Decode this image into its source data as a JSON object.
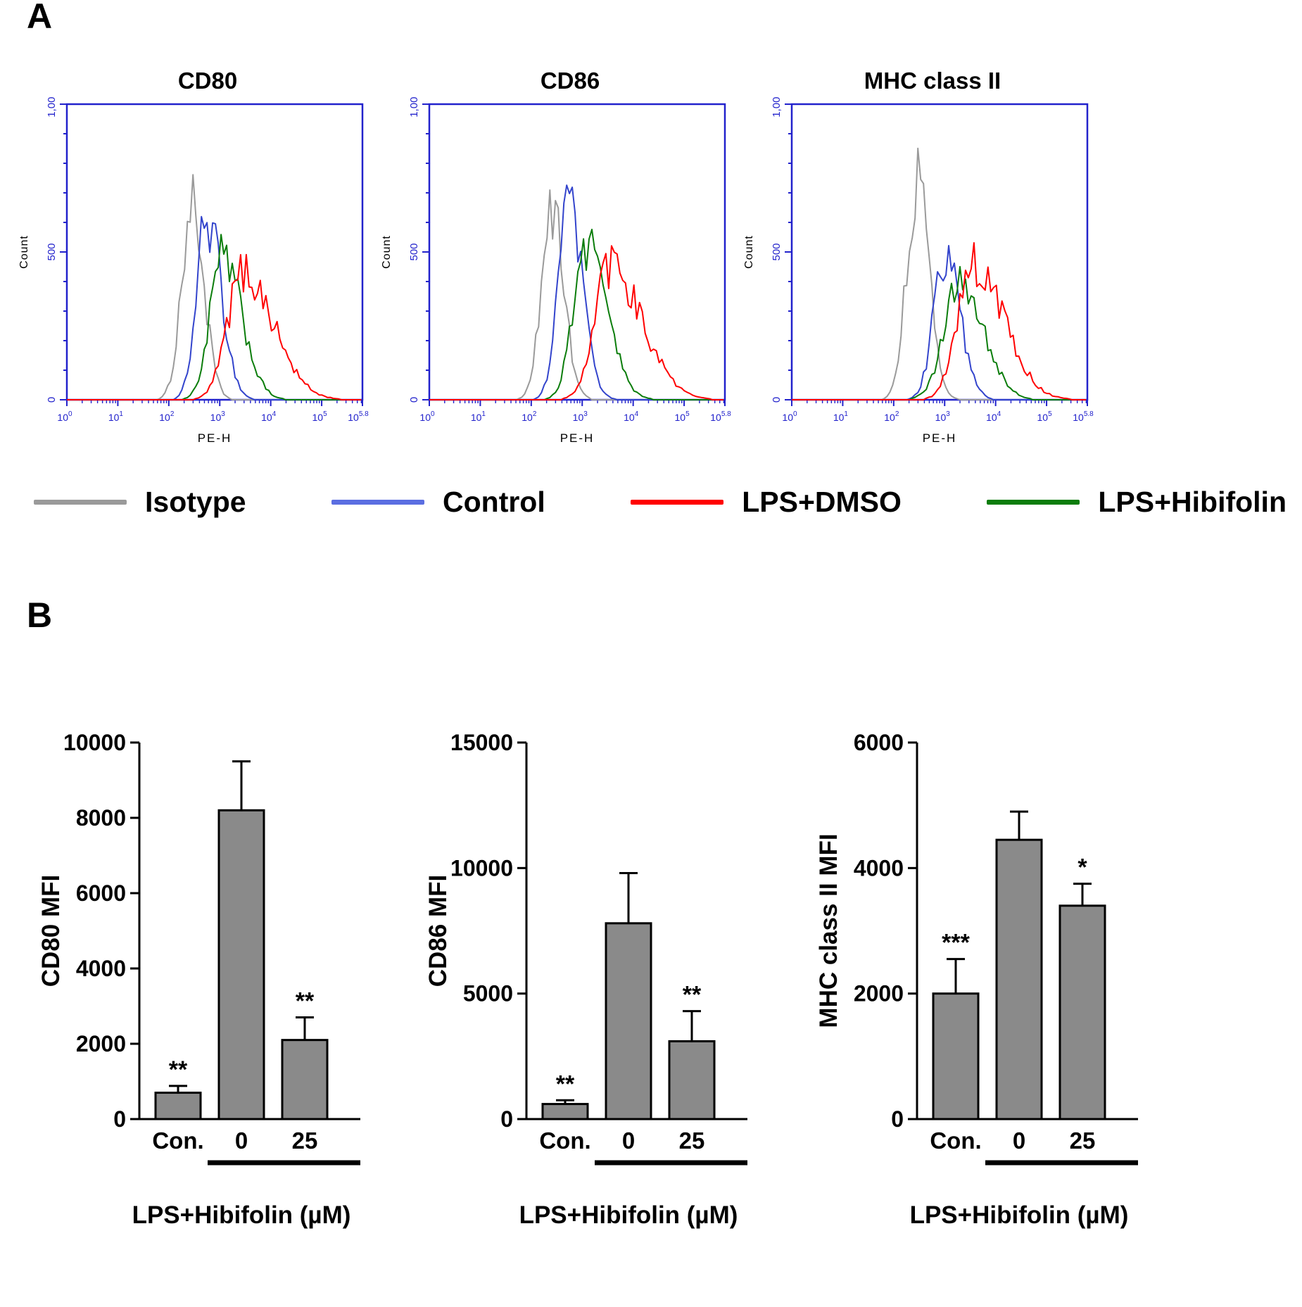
{
  "panel_a": {
    "label": "A",
    "titles": [
      "CD80",
      "CD86",
      "MHC class II"
    ],
    "legend": [
      {
        "label": "Isotype",
        "color": "#9a9a9a"
      },
      {
        "label": "Control",
        "color": "#5b6ee1"
      },
      {
        "label": "LPS+DMSO",
        "color": "#ff0000"
      },
      {
        "label": "LPS+Hibifolin",
        "color": "#0b7d0b"
      }
    ],
    "axis_color": "#2222cc"
  },
  "panel_b": {
    "label": "B"
  },
  "chart_data": [
    {
      "type": "histogram",
      "title": "CD80",
      "xlabel": "PE-H",
      "ylabel": "Count",
      "x_scale": "log10",
      "xlim": [
        0,
        5.8
      ],
      "x_decades": [
        0,
        1,
        2,
        3,
        4,
        5
      ],
      "x_end_exponent": "5.8",
      "ylim": [
        0,
        1000
      ],
      "yticks": [
        0,
        500,
        1000
      ],
      "ytick_labels": {
        "0": "0",
        "500": "500",
        "1000": "1,000"
      },
      "series": [
        {
          "name": "Isotype",
          "color": "#9a9a9a",
          "peak_log": 2.45,
          "peak_count": 650,
          "sigma_l": 0.2,
          "sigma_r": 0.24
        },
        {
          "name": "Control",
          "color": "#3344cc",
          "peak_log": 2.75,
          "peak_count": 615,
          "sigma_l": 0.2,
          "sigma_r": 0.28
        },
        {
          "name": "LPS+Hibifolin",
          "color": "#0b7d0b",
          "peak_log": 3.05,
          "peak_count": 480,
          "sigma_l": 0.24,
          "sigma_r": 0.38
        },
        {
          "name": "LPS+DMSO",
          "color": "#ff0000",
          "peak_log": 3.45,
          "peak_count": 430,
          "sigma_l": 0.3,
          "sigma_r": 0.6
        }
      ]
    },
    {
      "type": "histogram",
      "title": "CD86",
      "xlabel": "PE-H",
      "ylabel": "Count",
      "x_scale": "log10",
      "xlim": [
        0,
        5.8
      ],
      "x_decades": [
        0,
        1,
        2,
        3,
        4,
        5
      ],
      "x_end_exponent": "5.8",
      "ylim": [
        0,
        1000
      ],
      "yticks": [
        0,
        500,
        1000
      ],
      "ytick_labels": {
        "0": "0",
        "500": "500",
        "1000": "1,000"
      },
      "series": [
        {
          "name": "Isotype",
          "color": "#9a9a9a",
          "peak_log": 2.4,
          "peak_count": 640,
          "sigma_l": 0.2,
          "sigma_r": 0.24
        },
        {
          "name": "Control",
          "color": "#3344cc",
          "peak_log": 2.72,
          "peak_count": 645,
          "sigma_l": 0.2,
          "sigma_r": 0.28
        },
        {
          "name": "LPS+Hibifolin",
          "color": "#0b7d0b",
          "peak_log": 3.08,
          "peak_count": 530,
          "sigma_l": 0.25,
          "sigma_r": 0.4
        },
        {
          "name": "LPS+DMSO",
          "color": "#ff0000",
          "peak_log": 3.55,
          "peak_count": 450,
          "sigma_l": 0.3,
          "sigma_r": 0.62
        }
      ]
    },
    {
      "type": "histogram",
      "title": "MHC class II",
      "xlabel": "PE-H",
      "ylabel": "Count",
      "x_scale": "log10",
      "xlim": [
        0,
        5.8
      ],
      "x_decades": [
        0,
        1,
        2,
        3,
        4,
        5
      ],
      "x_end_exponent": "5.8",
      "ylim": [
        0,
        1000
      ],
      "yticks": [
        0,
        500,
        1000
      ],
      "ytick_labels": {
        "0": "0",
        "500": "500",
        "1000": "1,000"
      },
      "series": [
        {
          "name": "Isotype",
          "color": "#9a9a9a",
          "peak_log": 2.45,
          "peak_count": 730,
          "sigma_l": 0.2,
          "sigma_r": 0.24
        },
        {
          "name": "Control",
          "color": "#3344cc",
          "peak_log": 3.0,
          "peak_count": 480,
          "sigma_l": 0.22,
          "sigma_r": 0.3
        },
        {
          "name": "LPS+Hibifolin",
          "color": "#0b7d0b",
          "peak_log": 3.32,
          "peak_count": 400,
          "sigma_l": 0.32,
          "sigma_r": 0.45
        },
        {
          "name": "LPS+DMSO",
          "color": "#ff0000",
          "peak_log": 3.55,
          "peak_count": 460,
          "sigma_l": 0.3,
          "sigma_r": 0.6
        }
      ]
    },
    {
      "type": "bar",
      "ylabel": "CD80 MFI",
      "xlabel": "LPS+Hibifolin (µM)",
      "categories": [
        "Con.",
        "0",
        "25"
      ],
      "values": [
        700,
        8200,
        2100
      ],
      "errors": [
        180,
        1300,
        600
      ],
      "significance": [
        "**",
        "",
        "**"
      ],
      "ylim": [
        0,
        10000
      ],
      "yticks": [
        0,
        2000,
        4000,
        6000,
        8000,
        10000
      ],
      "bar_color": "#8a8a8a",
      "group_underline_from_category": 1
    },
    {
      "type": "bar",
      "ylabel": "CD86 MFI",
      "xlabel": "LPS+Hibifolin (µM)",
      "categories": [
        "Con.",
        "0",
        "25"
      ],
      "values": [
        600,
        7800,
        3100
      ],
      "errors": [
        150,
        2000,
        1200
      ],
      "significance": [
        "**",
        "",
        "**"
      ],
      "ylim": [
        0,
        15000
      ],
      "yticks": [
        0,
        5000,
        10000,
        15000
      ],
      "bar_color": "#8a8a8a",
      "group_underline_from_category": 1
    },
    {
      "type": "bar",
      "ylabel": "MHC class II MFI",
      "xlabel": "LPS+Hibifolin (µM)",
      "categories": [
        "Con.",
        "0",
        "25"
      ],
      "values": [
        2000,
        4450,
        3400
      ],
      "errors": [
        550,
        450,
        350
      ],
      "significance": [
        "***",
        "",
        "*"
      ],
      "ylim": [
        0,
        6000
      ],
      "yticks": [
        0,
        2000,
        4000,
        6000
      ],
      "bar_color": "#8a8a8a",
      "group_underline_from_category": 1
    }
  ]
}
